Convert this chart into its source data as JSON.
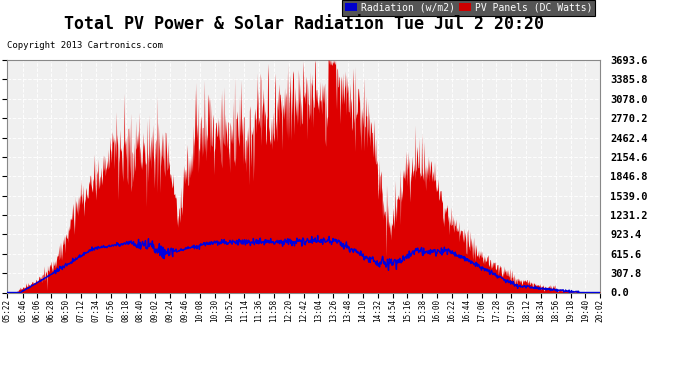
{
  "title": "Total PV Power & Solar Radiation Tue Jul 2 20:20",
  "copyright": "Copyright 2013 Cartronics.com",
  "ytick_values": [
    0.0,
    307.8,
    615.6,
    923.4,
    1231.2,
    1539.0,
    1846.8,
    2154.6,
    2462.4,
    2770.2,
    3078.0,
    3385.8,
    3693.6
  ],
  "ymax": 3693.6,
  "ymin": 0.0,
  "background_color": "#ffffff",
  "plot_bg_color": "#f0f0f0",
  "grid_color": "#cccccc",
  "title_fontsize": 12,
  "legend_radiation_color": "#0000cc",
  "legend_pv_color": "#cc0000",
  "legend_radiation_label": "Radiation (w/m2)",
  "legend_pv_label": "PV Panels (DC Watts)",
  "pv_fill_color": "#dd0000",
  "radiation_line_color": "#0000dd",
  "x_tick_labels": [
    "05:22",
    "05:46",
    "06:06",
    "06:28",
    "06:50",
    "07:12",
    "07:34",
    "07:56",
    "08:18",
    "08:40",
    "09:02",
    "09:24",
    "09:46",
    "10:08",
    "10:30",
    "10:52",
    "11:14",
    "11:36",
    "11:58",
    "12:20",
    "12:42",
    "13:04",
    "13:26",
    "13:48",
    "14:10",
    "14:32",
    "14:54",
    "15:16",
    "15:38",
    "16:00",
    "16:22",
    "16:44",
    "17:06",
    "17:28",
    "17:50",
    "18:12",
    "18:34",
    "18:56",
    "19:18",
    "19:40",
    "20:02"
  ],
  "seed": 1234
}
